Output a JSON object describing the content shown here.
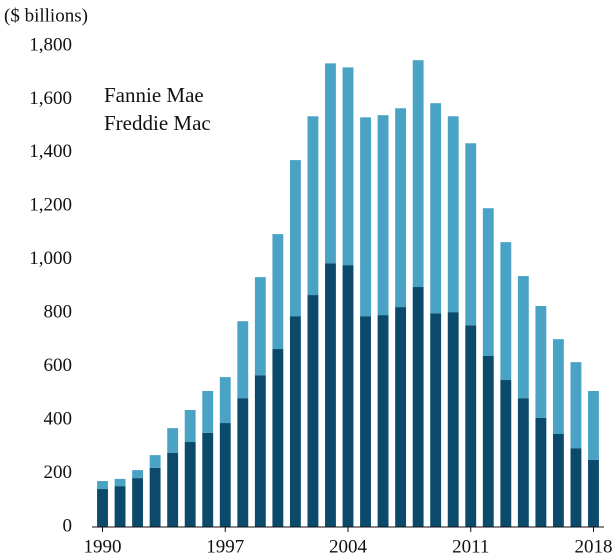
{
  "chart_data": {
    "type": "stacked_bar",
    "annotation": "($ billions)",
    "x": [
      1990,
      1991,
      1992,
      1993,
      1994,
      1995,
      1996,
      1997,
      1998,
      1999,
      2000,
      2001,
      2002,
      2003,
      2004,
      2005,
      2006,
      2007,
      2008,
      2009,
      2010,
      2011,
      2012,
      2013,
      2014,
      2015,
      2016,
      2017,
      2018
    ],
    "series": [
      {
        "name": "Fannie Mae",
        "color": "#0b4a6a",
        "values": [
          142,
          153,
          183,
          221,
          277,
          318,
          352,
          389,
          482,
          568,
          666,
          789,
          868,
          987,
          980,
          789,
          793,
          823,
          898,
          800,
          804,
          755,
          640,
          550,
          482,
          408,
          348,
          295,
          251
        ]
      },
      {
        "name": "Freddie Mac",
        "color": "#4aa3c4",
        "values": [
          30,
          27,
          30,
          48,
          93,
          120,
          157,
          172,
          288,
          367,
          430,
          584,
          669,
          748,
          740,
          744,
          748,
          744,
          849,
          786,
          733,
          681,
          553,
          516,
          457,
          419,
          355,
          322,
          258
        ]
      }
    ],
    "xlim": [
      1989.4,
      2018.6
    ],
    "xticks": [
      1990,
      1997,
      2004,
      2011,
      2018
    ],
    "ylim": [
      0,
      1800
    ],
    "yticks": [
      0,
      {
        "value": 200,
        "label": "200"
      },
      {
        "value": 400,
        "label": "400"
      },
      {
        "value": 600,
        "label": "600"
      },
      {
        "value": 800,
        "label": "800"
      },
      {
        "value": 1000,
        "label": "1,000"
      },
      {
        "value": 1200,
        "label": "1,200"
      },
      {
        "value": 1400,
        "label": "1,400"
      },
      {
        "value": 1600,
        "label": "1,600"
      },
      {
        "value": 1800,
        "label": "1,800"
      }
    ],
    "legend": "top-left",
    "grid": false
  }
}
